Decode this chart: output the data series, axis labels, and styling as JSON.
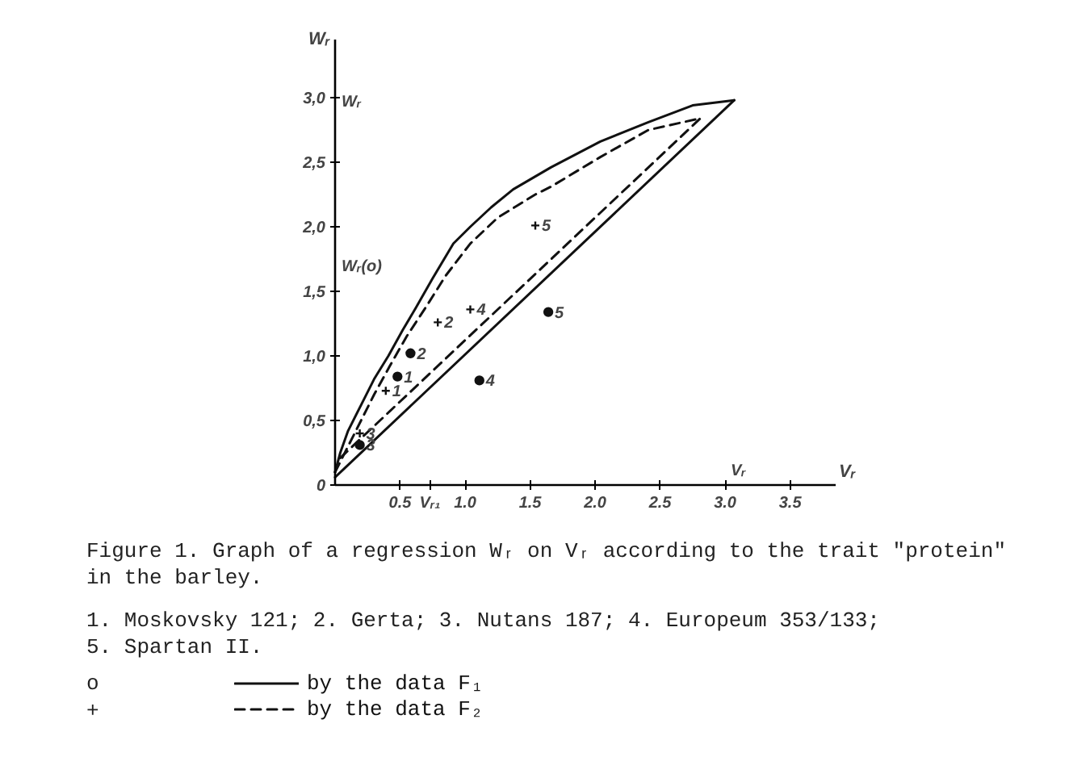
{
  "chart_data": {
    "type": "line",
    "xlabel": "Vᵣ",
    "ylabel": "Wᵣ",
    "legend": "bottom",
    "xlim": [
      0,
      3.85
    ],
    "ylim": [
      0,
      3.45
    ],
    "xticks": [
      {
        "value": 0.5,
        "label": "0.5"
      },
      {
        "value": 0.73,
        "label": "Vᵣ₁"
      },
      {
        "value": 1,
        "label": "1.0"
      },
      {
        "value": 1.5,
        "label": "1.5"
      },
      {
        "value": 2,
        "label": "2.0"
      },
      {
        "value": 2.5,
        "label": "2.5"
      },
      {
        "value": 3,
        "label": "3.0"
      },
      {
        "value": 3.5,
        "label": "3.5"
      }
    ],
    "yticks": [
      {
        "value": 0,
        "label": "0"
      },
      {
        "value": 0.5,
        "label": "0,5"
      },
      {
        "value": 1,
        "label": "1,0"
      },
      {
        "value": 1.5,
        "label": "1,5"
      },
      {
        "value": 2,
        "label": "2,0"
      },
      {
        "value": 2.5,
        "label": "2,5"
      },
      {
        "value": 3,
        "label": "3,0"
      }
    ],
    "series": [
      {
        "name": "by the data F₁",
        "line_style": "solid",
        "color": "#111111",
        "x": [
          0,
          0.04,
          0.1,
          0.2,
          0.3,
          0.41,
          0.52,
          0.62,
          0.75,
          0.91,
          1.04,
          1.2,
          1.37,
          1.66,
          2.04,
          2.41,
          2.75,
          3.07
        ],
        "values": [
          0.1,
          0.25,
          0.42,
          0.62,
          0.82,
          1.0,
          1.2,
          1.37,
          1.6,
          1.87,
          2.0,
          2.15,
          2.29,
          2.46,
          2.66,
          2.81,
          2.94,
          2.98
        ]
      },
      {
        "line_style": "solid",
        "color": "#111111",
        "x": [
          0,
          3.07
        ],
        "values": [
          0.06,
          2.98
        ]
      },
      {
        "type": "scatter",
        "marker": "circle",
        "color": "#111111",
        "x": [
          0.48,
          0.58,
          0.19,
          1.11,
          1.64
        ],
        "values": [
          0.84,
          1.02,
          0.31,
          0.81,
          1.34
        ]
      },
      {
        "name": "by the data F₂",
        "line_style": "dashed",
        "color": "#111111",
        "x": [
          0,
          0.1,
          0.2,
          0.3,
          0.42,
          0.55,
          0.7,
          0.85,
          1.04,
          1.25,
          1.54,
          1.66,
          2.04,
          2.41,
          2.81
        ],
        "values": [
          0.1,
          0.3,
          0.5,
          0.7,
          0.92,
          1.15,
          1.38,
          1.62,
          1.87,
          2.07,
          2.25,
          2.31,
          2.54,
          2.75,
          2.84
        ]
      },
      {
        "line_style": "dashed",
        "color": "#111111",
        "x": [
          0.04,
          2.81
        ],
        "values": [
          0.21,
          2.84
        ]
      },
      {
        "type": "scatter",
        "marker": "cross",
        "color": "#111111",
        "x": [
          0.39,
          0.79,
          0.19,
          1.04,
          1.54
        ],
        "values": [
          0.73,
          1.26,
          0.4,
          1.36,
          2.01
        ]
      }
    ],
    "annotations": [
      {
        "text": "1",
        "x": 0.48,
        "y": 0.84
      },
      {
        "text": "1",
        "x": 0.39,
        "y": 0.73
      },
      {
        "text": "2",
        "x": 0.58,
        "y": 1.02
      },
      {
        "text": "2",
        "x": 0.79,
        "y": 1.26
      },
      {
        "text": "3",
        "x": 0.19,
        "y": 0.31
      },
      {
        "text": "3",
        "x": 0.19,
        "y": 0.4
      },
      {
        "text": "4",
        "x": 1.11,
        "y": 0.81
      },
      {
        "text": "4",
        "x": 1.04,
        "y": 1.36
      },
      {
        "text": "5",
        "x": 1.64,
        "y": 1.34
      },
      {
        "text": "5",
        "x": 1.54,
        "y": 2.01
      },
      "Wᵣ",
      "Wᵣ(o)",
      "Vᵣ",
      "Figure 1. Graph of a regression Wᵣ on Vᵣ according to the trait \"protein\" in the barley.",
      "1. Moskovsky 121; 2. Gerta; 3. Nutans 187; 4. Europeum 353/133; 5. Spartan II.",
      "o",
      "+"
    ]
  }
}
